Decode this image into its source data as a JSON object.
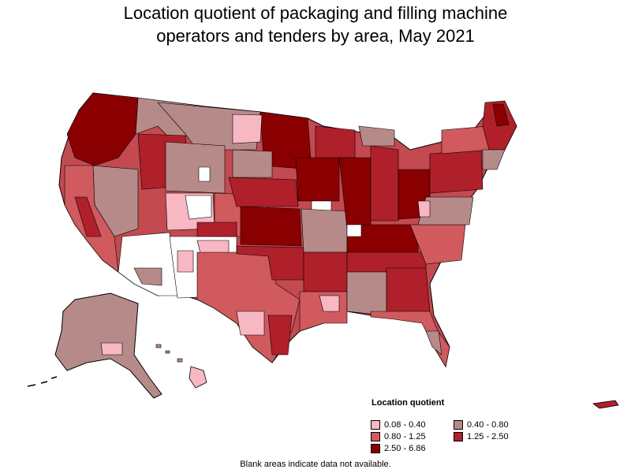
{
  "title_line1": "Location quotient of packaging and filling machine",
  "title_line2": "operators and tenders by area, May 2021",
  "legend": {
    "title": "Location quotient",
    "items": [
      {
        "label": "0.08 - 0.40",
        "color": "#f7b8c3"
      },
      {
        "label": "0.40 - 0.80",
        "color": "#b78a8a"
      },
      {
        "label": "0.80 - 1.25",
        "color": "#d05a5e"
      },
      {
        "label": "1.25 - 2.50",
        "color": "#b0202a"
      },
      {
        "label": "2.50 - 6.86",
        "color": "#8a0000"
      }
    ]
  },
  "footnote": "Blank areas indicate data not available.",
  "colors": {
    "very_low": "#f7b8c3",
    "low": "#b78a8a",
    "mid": "#d05a5e",
    "high": "#b0202a",
    "very_high": "#8a0000",
    "no_data": "#ffffff",
    "border": "#000000"
  }
}
